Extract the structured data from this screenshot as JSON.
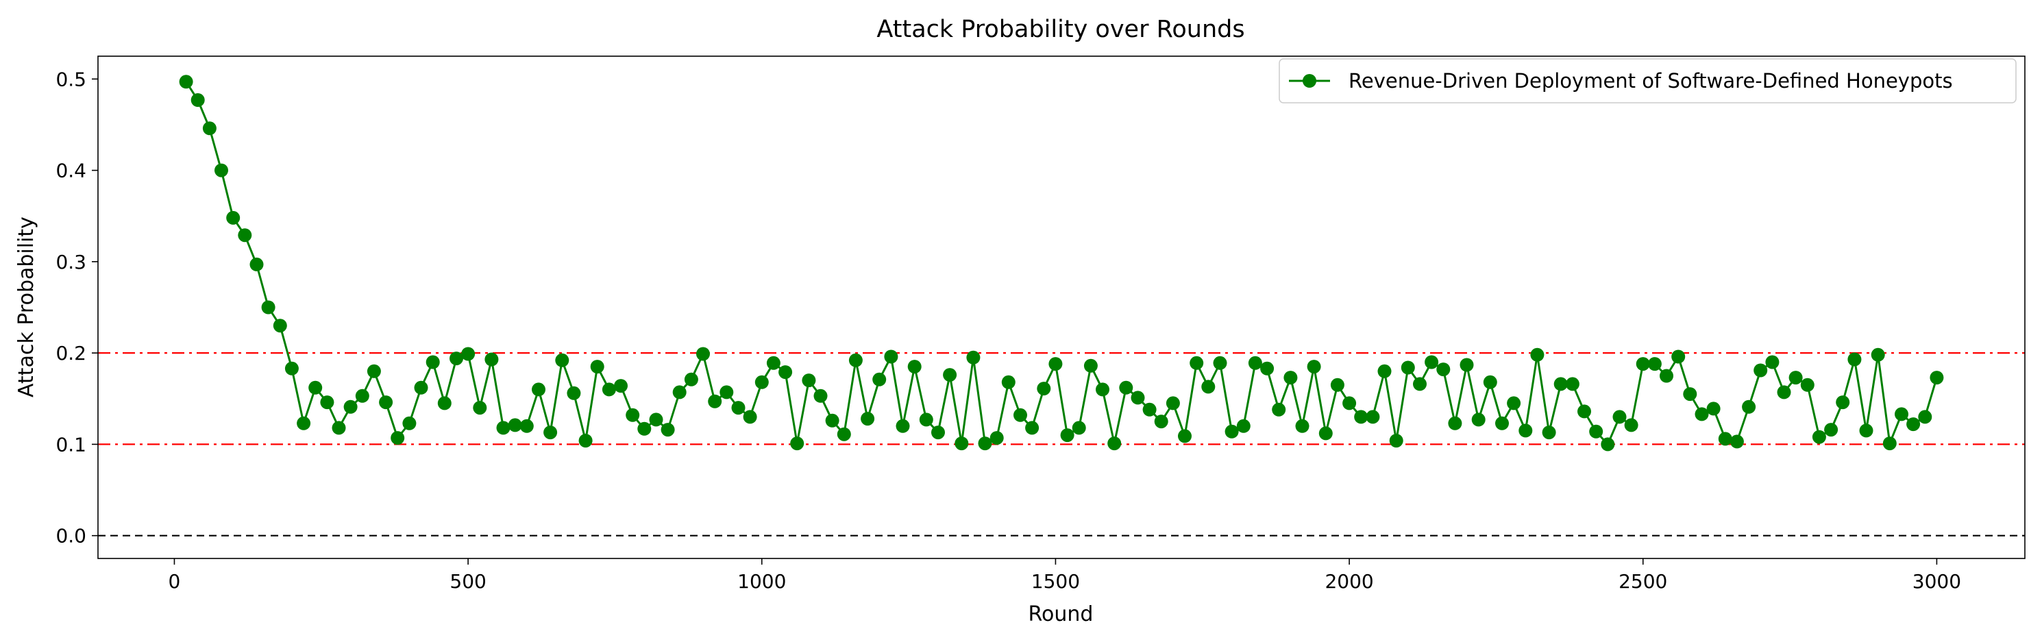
{
  "chart_data": {
    "type": "line",
    "title": "Attack Probability over Rounds",
    "xlabel": "Round",
    "ylabel": "Attack Probability",
    "xlim": [
      -130,
      3150
    ],
    "ylim": [
      -0.025,
      0.525
    ],
    "xticks": [
      {
        "value": 0,
        "label": "0"
      },
      {
        "value": 500,
        "label": "500"
      },
      {
        "value": 1000,
        "label": "1000"
      },
      {
        "value": 1500,
        "label": "1500"
      },
      {
        "value": 2000,
        "label": "2000"
      },
      {
        "value": 2500,
        "label": "2500"
      },
      {
        "value": 3000,
        "label": "3000"
      }
    ],
    "yticks": [
      {
        "value": 0.0,
        "label": "0.0"
      },
      {
        "value": 0.1,
        "label": "0.1"
      },
      {
        "value": 0.2,
        "label": "0.2"
      },
      {
        "value": 0.3,
        "label": "0.3"
      },
      {
        "value": 0.4,
        "label": "0.4"
      },
      {
        "value": 0.5,
        "label": "0.5"
      }
    ],
    "grid": false,
    "legend_position": "top-right",
    "reference_lines": [
      {
        "y": 0.2,
        "color": "#ff0000",
        "style": "dash-dot"
      },
      {
        "y": 0.1,
        "color": "#ff0000",
        "style": "dash-dot"
      },
      {
        "y": 0.0,
        "color": "#000000",
        "style": "dashed"
      }
    ],
    "series": [
      {
        "name": "Revenue-Driven Deployment of Software-Defined Honeypots",
        "color": "#008000",
        "marker": "circle",
        "x": [
          20,
          40,
          60,
          80,
          100,
          120,
          140,
          160,
          180,
          200,
          220,
          240,
          260,
          280,
          300,
          320,
          340,
          360,
          380,
          400,
          420,
          440,
          460,
          480,
          500,
          520,
          540,
          560,
          580,
          600,
          620,
          640,
          660,
          680,
          700,
          720,
          740,
          760,
          780,
          800,
          820,
          840,
          860,
          880,
          900,
          920,
          940,
          960,
          980,
          1000,
          1020,
          1040,
          1060,
          1080,
          1100,
          1120,
          1140,
          1160,
          1180,
          1200,
          1220,
          1240,
          1260,
          1280,
          1300,
          1320,
          1340,
          1360,
          1380,
          1400,
          1420,
          1440,
          1460,
          1480,
          1500,
          1520,
          1540,
          1560,
          1580,
          1600,
          1620,
          1640,
          1660,
          1680,
          1700,
          1720,
          1740,
          1760,
          1780,
          1800,
          1820,
          1840,
          1860,
          1880,
          1900,
          1920,
          1940,
          1960,
          1980,
          2000,
          2020,
          2040,
          2060,
          2080,
          2100,
          2120,
          2140,
          2160,
          2180,
          2200,
          2220,
          2240,
          2260,
          2280,
          2300,
          2320,
          2340,
          2360,
          2380,
          2400,
          2420,
          2440,
          2460,
          2480,
          2500,
          2520,
          2540,
          2560,
          2580,
          2600,
          2620,
          2640,
          2660,
          2680,
          2700,
          2720,
          2740,
          2760,
          2780,
          2800,
          2820,
          2840,
          2860,
          2880,
          2900,
          2920,
          2940,
          2960,
          2980,
          3000
        ],
        "y": [
          0.497,
          0.477,
          0.446,
          0.4,
          0.348,
          0.329,
          0.297,
          0.25,
          0.23,
          0.183,
          0.123,
          0.162,
          0.146,
          0.118,
          0.141,
          0.153,
          0.18,
          0.146,
          0.107,
          0.123,
          0.162,
          0.19,
          0.145,
          0.194,
          0.199,
          0.14,
          0.193,
          0.118,
          0.121,
          0.12,
          0.16,
          0.113,
          0.192,
          0.156,
          0.104,
          0.185,
          0.16,
          0.164,
          0.132,
          0.117,
          0.127,
          0.116,
          0.157,
          0.171,
          0.199,
          0.147,
          0.157,
          0.14,
          0.13,
          0.168,
          0.189,
          0.179,
          0.101,
          0.17,
          0.153,
          0.126,
          0.111,
          0.192,
          0.128,
          0.171,
          0.196,
          0.12,
          0.185,
          0.127,
          0.113,
          0.176,
          0.101,
          0.195,
          0.101,
          0.107,
          0.168,
          0.132,
          0.118,
          0.161,
          0.188,
          0.11,
          0.118,
          0.186,
          0.16,
          0.101,
          0.162,
          0.151,
          0.138,
          0.125,
          0.145,
          0.109,
          0.189,
          0.163,
          0.189,
          0.114,
          0.12,
          0.189,
          0.183,
          0.138,
          0.173,
          0.12,
          0.185,
          0.112,
          0.165,
          0.145,
          0.13,
          0.13,
          0.18,
          0.104,
          0.184,
          0.166,
          0.19,
          0.182,
          0.123,
          0.187,
          0.127,
          0.168,
          0.123,
          0.145,
          0.115,
          0.198,
          0.113,
          0.166,
          0.166,
          0.136,
          0.114,
          0.1,
          0.13,
          0.121,
          0.188,
          0.188,
          0.175,
          0.196,
          0.155,
          0.133,
          0.139,
          0.106,
          0.103,
          0.141,
          0.181,
          0.19,
          0.157,
          0.173,
          0.165,
          0.108,
          0.116,
          0.146,
          0.193,
          0.115,
          0.198,
          0.101,
          0.133,
          0.122,
          0.13,
          0.173
        ]
      }
    ]
  }
}
